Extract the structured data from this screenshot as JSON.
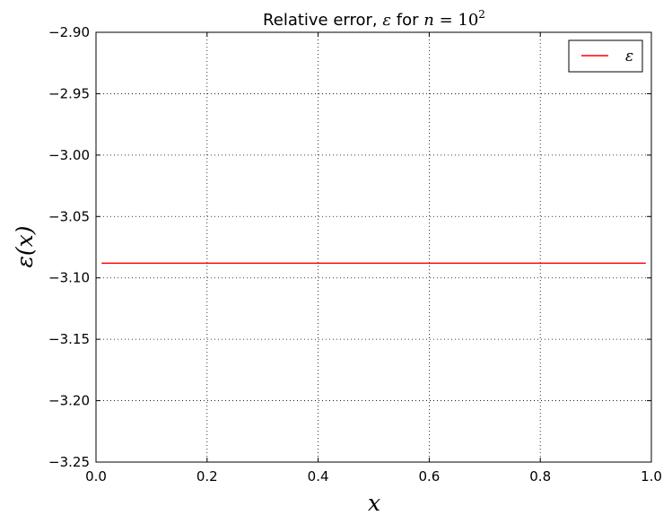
{
  "chart_data": {
    "type": "line",
    "title": {
      "prefix": "Relative error, ",
      "symbol": "ε",
      "middle": " for ",
      "n": "n",
      "eq": " = ",
      "base": "10",
      "exponent": "2"
    },
    "xlabel": "x",
    "ylabel": "ε(x)",
    "xlim": [
      0.0,
      1.0
    ],
    "ylim": [
      -3.25,
      -2.9
    ],
    "xticks": [
      "0.0",
      "0.2",
      "0.4",
      "0.6",
      "0.8",
      "1.0"
    ],
    "yticks": [
      "−2.90",
      "−2.95",
      "−3.00",
      "−3.05",
      "−3.10",
      "−3.15",
      "−3.20",
      "−3.25"
    ],
    "grid": true,
    "legend_position": "top-right",
    "series": [
      {
        "name": "ε",
        "color": "#ff0000",
        "x": [
          0.01,
          0.99
        ],
        "y": [
          -3.088,
          -3.088
        ]
      }
    ]
  }
}
